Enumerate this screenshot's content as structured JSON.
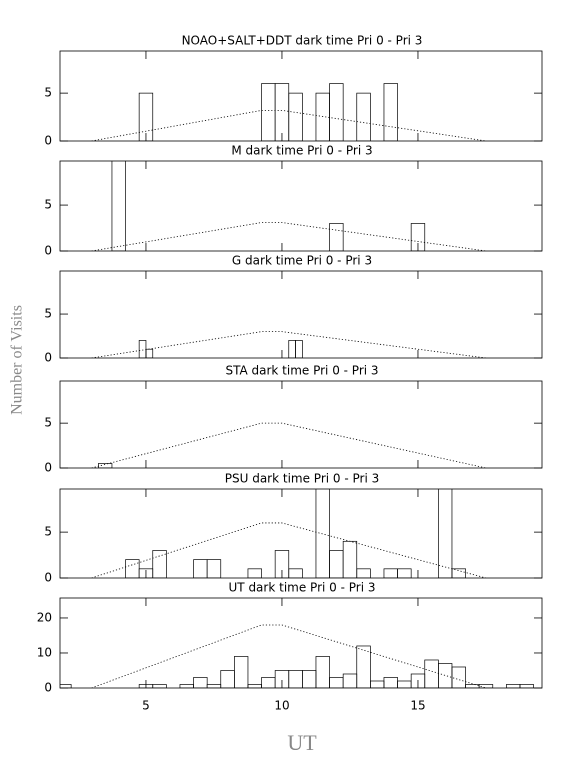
{
  "chart_data": [
    {
      "type": "histogram",
      "title": "NOAO+SALT+DDT dark time Pri 0 - Pri 3",
      "color": "#000000",
      "bins": [
        4.75,
        5.25,
        5.75,
        6.25,
        6.75,
        7.25,
        7.75,
        8.25,
        8.75,
        9.25,
        9.75,
        10.25,
        10.75,
        11.25,
        11.75,
        12.25,
        12.75,
        13.25,
        13.75,
        14.25
      ],
      "counts": [
        5,
        0,
        0,
        0,
        0,
        0,
        0,
        0,
        0,
        6,
        6,
        5,
        0,
        5,
        6,
        0,
        5,
        0,
        6
      ],
      "curve": {
        "x": [
          3,
          9.25,
          10,
          17.5
        ],
        "y": [
          0,
          3.2,
          3.2,
          0
        ]
      },
      "xlim": [
        1.84,
        19.56
      ],
      "xticks": [
        5,
        10,
        15
      ],
      "ylim": [
        0,
        9.4
      ],
      "yticks": [
        0,
        5
      ]
    },
    {
      "type": "histogram",
      "title": "M    dark time Pri 0 - Pri 3",
      "color": "#000000",
      "bins": [
        3.75,
        4.25,
        4.75,
        5.25,
        5.75,
        6.25,
        6.75,
        7.25,
        7.75,
        8.25,
        8.75,
        9.25,
        9.75,
        10.25,
        10.75,
        11.25,
        11.75,
        12.25,
        12.75,
        13.25,
        13.75,
        14.25,
        14.75,
        15.25
      ],
      "counts": [
        10,
        0,
        0,
        0,
        0,
        0,
        0,
        0,
        0,
        0,
        0,
        0,
        0,
        0,
        0,
        0,
        3,
        0,
        0,
        0,
        0,
        0,
        3
      ],
      "curve": {
        "x": [
          3,
          9.25,
          10,
          17.5
        ],
        "y": [
          0,
          3.1,
          3.1,
          0
        ]
      },
      "xlim": [
        1.84,
        19.56
      ],
      "xticks": [
        5,
        10,
        15
      ],
      "ylim": [
        0,
        9.8
      ],
      "yticks": [
        0,
        5
      ]
    },
    {
      "type": "histogram",
      "title": "G    dark time Pri 0 - Pri 3",
      "color": "#000000",
      "bins": [
        4.75,
        5,
        5.25,
        5.5,
        5.75,
        6,
        6.25,
        6.5,
        6.75,
        7,
        7.25,
        7.5,
        7.75,
        8,
        8.25,
        8.5,
        8.75,
        9,
        9.25,
        9.5,
        9.75,
        10,
        10.25,
        10.5,
        10.75
      ],
      "counts": [
        2,
        1,
        0,
        0,
        0,
        0,
        0,
        0,
        0,
        0,
        0,
        0,
        0,
        0,
        0,
        0,
        0,
        0,
        0,
        0,
        0,
        0,
        2,
        2
      ],
      "curve": {
        "x": [
          3,
          9.25,
          10,
          17.5
        ],
        "y": [
          0,
          3,
          3,
          0
        ]
      },
      "xlim": [
        1.84,
        19.56
      ],
      "xticks": [
        5,
        10,
        15
      ],
      "ylim": [
        0,
        9.9
      ],
      "yticks": [
        0,
        5
      ]
    },
    {
      "type": "histogram",
      "title": "STA    dark time Pri 0 - Pri 3",
      "color": "#000000",
      "bins": [
        3.25,
        3.75
      ],
      "counts": [
        0.5
      ],
      "curve": {
        "x": [
          3,
          9.25,
          10,
          17.5
        ],
        "y": [
          0,
          5,
          5,
          0
        ]
      },
      "xlim": [
        1.84,
        19.56
      ],
      "xticks": [
        5,
        10,
        15
      ],
      "ylim": [
        0,
        9.7
      ],
      "yticks": [
        0,
        5
      ]
    },
    {
      "type": "histogram",
      "title": "PSU    dark time Pri 0 - Pri 3",
      "color": "#000000",
      "bins": [
        4.25,
        4.75,
        5.25,
        5.75,
        6.25,
        6.75,
        7.25,
        7.75,
        8.25,
        8.75,
        9.25,
        9.75,
        10.25,
        10.75,
        11.25,
        11.75,
        12.25,
        12.75,
        13.25,
        13.75,
        14.25,
        14.75,
        15.25,
        15.75,
        16.25,
        16.75,
        17.25
      ],
      "counts": [
        2,
        1,
        3,
        0,
        0,
        2,
        2,
        0,
        0,
        1,
        0,
        3,
        1,
        0,
        10,
        3,
        4,
        1,
        0,
        1,
        1,
        0,
        0,
        10,
        1,
        0
      ],
      "curve": {
        "x": [
          3,
          9.25,
          10,
          17.5
        ],
        "y": [
          0,
          6,
          6,
          0
        ]
      },
      "xlim": [
        1.84,
        19.56
      ],
      "xticks": [
        5,
        10,
        15
      ],
      "ylim": [
        0,
        9.7
      ],
      "yticks": [
        0,
        5
      ]
    },
    {
      "type": "histogram",
      "title": "UT    dark time Pri 0 - Pri 3",
      "color": "#000000",
      "bins": [
        1.75,
        2.25,
        2.75,
        3.25,
        3.75,
        4.25,
        4.75,
        5.25,
        5.75,
        6.25,
        6.75,
        7.25,
        7.75,
        8.25,
        8.75,
        9.25,
        9.75,
        10.25,
        10.75,
        11.25,
        11.75,
        12.25,
        12.75,
        13.25,
        13.75,
        14.25,
        14.75,
        15.25,
        15.75,
        16.25,
        16.75,
        17.25,
        17.75,
        18.25,
        18.75,
        19.25
      ],
      "counts": [
        1,
        0,
        0,
        0,
        0,
        0,
        1,
        1,
        0,
        1,
        3,
        1,
        5,
        9,
        1,
        3,
        5,
        5,
        5,
        9,
        3,
        4,
        12,
        2,
        3,
        2,
        4,
        8,
        7,
        6,
        1,
        1,
        0,
        1,
        1
      ],
      "curve": {
        "x": [
          3,
          9.25,
          10,
          17.5
        ],
        "y": [
          0,
          18,
          18,
          0
        ]
      },
      "xlim": [
        1.84,
        19.56
      ],
      "xticks": [
        5,
        10,
        15
      ],
      "ylim": [
        0,
        25.7
      ],
      "yticks": [
        0,
        10,
        20
      ]
    }
  ],
  "ylabel": "Number of Visits",
  "xlabel": "UT"
}
